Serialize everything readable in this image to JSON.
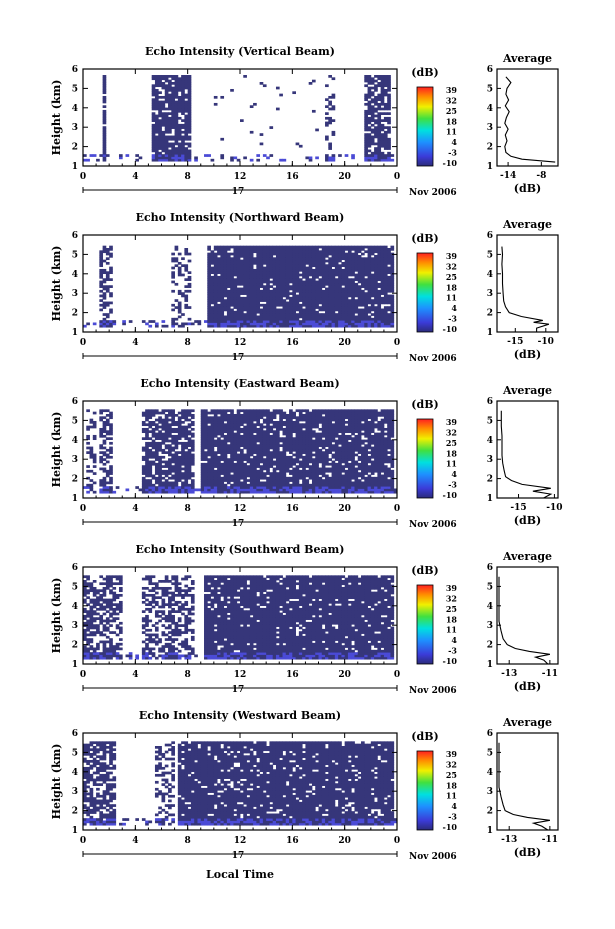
{
  "figure": {
    "xlabel": "Local Time",
    "date_label": "17",
    "month_year": "Nov 2006",
    "colorbar_unit": "(dB)",
    "colorbar_ticks": [
      "39",
      "32",
      "25",
      "18",
      "11",
      "4",
      "-3",
      "-10"
    ],
    "avg_title": "Average",
    "avg_xlabel": "(dB)",
    "colors": {
      "background": "#ffffff",
      "echo_fill": "#36367a",
      "axis": "#000000",
      "near_ground": "#4b4bd6"
    }
  },
  "chart_data": [
    {
      "type": "heatmap",
      "title": "Echo Intensity (Vertical Beam)",
      "ylabel": "Height (km)",
      "x_ticks": [
        "0",
        "4",
        "8",
        "12",
        "16",
        "20",
        "0"
      ],
      "xlim": [
        0,
        24
      ],
      "y_ticks": [
        "1",
        "2",
        "3",
        "4",
        "5",
        "6"
      ],
      "ylim": [
        1,
        6
      ],
      "colorbar_range_dB": [
        -10,
        39
      ],
      "grid": false,
      "seed": 11,
      "echo_regions_hours": [
        [
          1.5,
          1.7,
          0.9
        ],
        [
          5.3,
          8.2,
          0.85
        ],
        [
          18.6,
          19.2,
          0.3
        ],
        [
          21.5,
          23.4,
          0.7
        ],
        [
          10,
          18,
          0.02
        ]
      ],
      "top_km": 5.6,
      "profile": {
        "title": "Average",
        "x_ticks": [
          "-14",
          "-8"
        ],
        "xlim": [
          -16,
          -5
        ],
        "xlabel": "(dB)",
        "height_km": [
          1.2,
          1.35,
          1.5,
          1.7,
          2.0,
          2.3,
          2.6,
          2.9,
          3.2,
          3.5,
          3.8,
          4.1,
          4.4,
          4.7,
          5.0,
          5.3,
          5.6
        ],
        "mean_dB": [
          -5.5,
          -11.5,
          -13.5,
          -14.4,
          -14.6,
          -14.2,
          -14.5,
          -14.0,
          -14.6,
          -14.3,
          -13.8,
          -14.5,
          -13.9,
          -14.4,
          -14.2,
          -13.5,
          -14.4
        ]
      }
    },
    {
      "type": "heatmap",
      "title": "Echo Intensity (Northward Beam)",
      "ylabel": "Height (km)",
      "x_ticks": [
        "0",
        "4",
        "8",
        "12",
        "16",
        "20",
        "0"
      ],
      "xlim": [
        0,
        24
      ],
      "y_ticks": [
        "1",
        "2",
        "3",
        "4",
        "5",
        "6"
      ],
      "ylim": [
        1,
        6
      ],
      "colorbar_range_dB": [
        -10,
        39
      ],
      "grid": false,
      "seed": 23,
      "echo_regions_hours": [
        [
          1.3,
          2.2,
          0.55
        ],
        [
          6.8,
          8.2,
          0.35
        ],
        [
          9.5,
          23.8,
          0.93
        ]
      ],
      "top_km": 5.4,
      "profile": {
        "title": "Average",
        "x_ticks": [
          "-15",
          "-10"
        ],
        "xlim": [
          -18,
          -8
        ],
        "xlabel": "(dB)",
        "height_km": [
          1.0,
          1.2,
          1.4,
          1.5,
          1.6,
          1.8,
          2.0,
          2.3,
          2.6,
          3.0,
          3.5,
          4.0,
          4.5,
          5.0,
          5.4
        ],
        "mean_dB": [
          -11.5,
          -11.5,
          -9.5,
          -12.0,
          -10.5,
          -14.0,
          -16.0,
          -16.6,
          -16.9,
          -17.0,
          -17.1,
          -17.1,
          -17.2,
          -17.1,
          -17.2
        ]
      }
    },
    {
      "type": "heatmap",
      "title": "Echo Intensity (Eastward Beam)",
      "ylabel": "Height (km)",
      "x_ticks": [
        "0",
        "4",
        "8",
        "12",
        "16",
        "20",
        "0"
      ],
      "xlim": [
        0,
        24
      ],
      "y_ticks": [
        "1",
        "2",
        "3",
        "4",
        "5",
        "6"
      ],
      "ylim": [
        1,
        6
      ],
      "colorbar_range_dB": [
        -10,
        39
      ],
      "grid": false,
      "seed": 37,
      "echo_regions_hours": [
        [
          0.2,
          1.0,
          0.35
        ],
        [
          1.2,
          2.2,
          0.6
        ],
        [
          4.5,
          8.5,
          0.75
        ],
        [
          9.0,
          23.8,
          0.88
        ]
      ],
      "top_km": 5.5,
      "profile": {
        "title": "Average",
        "x_ticks": [
          "-15",
          "-10"
        ],
        "xlim": [
          -18,
          -9.5
        ],
        "xlabel": "(dB)",
        "height_km": [
          1.0,
          1.2,
          1.35,
          1.5,
          1.7,
          1.9,
          2.1,
          2.4,
          2.8,
          3.2,
          3.7,
          4.2,
          4.7,
          5.2,
          5.5
        ],
        "mean_dB": [
          -11.5,
          -10.5,
          -13.0,
          -10.5,
          -14.5,
          -16.0,
          -16.8,
          -17.0,
          -17.2,
          -17.3,
          -17.3,
          -17.3,
          -17.4,
          -17.4,
          -17.4
        ]
      }
    },
    {
      "type": "heatmap",
      "title": "Echo Intensity (Southward Beam)",
      "ylabel": "Height (km)",
      "x_ticks": [
        "0",
        "4",
        "8",
        "12",
        "16",
        "20",
        "0"
      ],
      "xlim": [
        0,
        24
      ],
      "y_ticks": [
        "1",
        "2",
        "3",
        "4",
        "5",
        "6"
      ],
      "ylim": [
        1,
        6
      ],
      "colorbar_range_dB": [
        -10,
        39
      ],
      "grid": false,
      "seed": 53,
      "echo_regions_hours": [
        [
          0.1,
          3.0,
          0.62
        ],
        [
          4.5,
          8.5,
          0.5
        ],
        [
          9.2,
          23.8,
          0.9
        ]
      ],
      "top_km": 5.5,
      "profile": {
        "title": "Average",
        "x_ticks": [
          "-13",
          "-11"
        ],
        "xlim": [
          -13.6,
          -10.6
        ],
        "xlabel": "(dB)",
        "height_km": [
          1.0,
          1.2,
          1.35,
          1.5,
          1.65,
          1.8,
          2.0,
          2.3,
          2.7,
          3.2,
          3.7,
          4.2,
          4.7,
          5.2,
          5.5
        ],
        "mean_dB": [
          -11.1,
          -11.3,
          -11.7,
          -11.0,
          -12.0,
          -12.7,
          -13.1,
          -13.3,
          -13.4,
          -13.5,
          -13.5,
          -13.5,
          -13.5,
          -13.5,
          -13.5
        ]
      }
    },
    {
      "type": "heatmap",
      "title": "Echo Intensity (Westward Beam)",
      "ylabel": "Height (km)",
      "x_ticks": [
        "0",
        "4",
        "8",
        "12",
        "16",
        "20",
        "0"
      ],
      "xlim": [
        0,
        24
      ],
      "y_ticks": [
        "1",
        "2",
        "3",
        "4",
        "5",
        "6"
      ],
      "ylim": [
        1,
        6
      ],
      "colorbar_range_dB": [
        -10,
        39
      ],
      "grid": false,
      "seed": 71,
      "echo_regions_hours": [
        [
          0.1,
          2.4,
          0.65
        ],
        [
          5.6,
          7.0,
          0.45
        ],
        [
          7.2,
          23.8,
          0.88
        ]
      ],
      "top_km": 5.5,
      "profile": {
        "title": "Average",
        "x_ticks": [
          "-13",
          "-11"
        ],
        "xlim": [
          -13.6,
          -10.6
        ],
        "xlabel": "(dB)",
        "height_km": [
          1.0,
          1.2,
          1.35,
          1.5,
          1.65,
          1.8,
          2.0,
          2.3,
          2.7,
          3.2,
          3.7,
          4.2,
          4.7,
          5.2,
          5.5
        ],
        "mean_dB": [
          -11.1,
          -11.4,
          -11.8,
          -11.0,
          -12.1,
          -12.8,
          -13.2,
          -13.3,
          -13.4,
          -13.5,
          -13.5,
          -13.5,
          -13.5,
          -13.5,
          -13.5
        ]
      }
    }
  ]
}
